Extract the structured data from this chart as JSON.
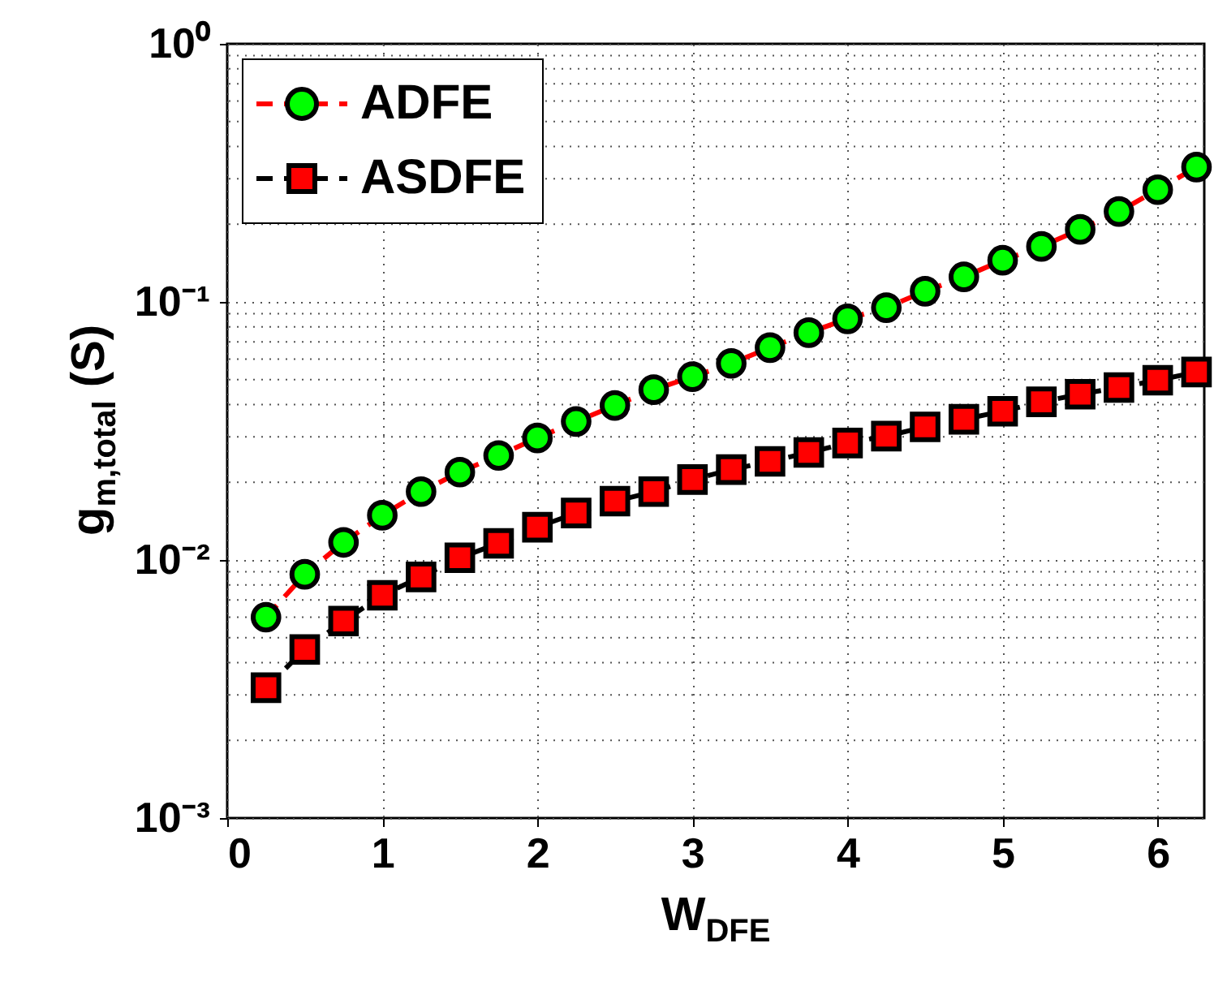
{
  "chart_data": {
    "type": "line",
    "xlabel": "W$_{DFE}$",
    "ylabel": "g$_{m,total}$ (S)",
    "x": [
      0.25,
      0.5,
      0.75,
      1,
      1.25,
      1.5,
      1.75,
      2,
      2.25,
      2.5,
      2.75,
      3,
      3.25,
      3.5,
      3.75,
      4,
      4.25,
      4.5,
      4.75,
      5,
      5.25,
      5.5,
      5.75,
      6,
      6.25
    ],
    "series": [
      {
        "name": "ADFE",
        "color": "#ff0000",
        "marker": "circle",
        "colors": [
          "#00ff00",
          "#00ff00",
          "#00ff00",
          "#00ff00",
          "#00ff00",
          "#00ff00",
          "#00ff00",
          "#00ff00",
          "#00ff00",
          "#00ff00",
          "#00ff00",
          "#00ff00",
          "#00ff00",
          "#00ff00",
          "#00ff00",
          "#00ff00",
          "#00ff00",
          "#00ff00",
          "#00ff00",
          "#00ff00",
          "#00ff00",
          "#00ff00",
          "#00ff00",
          "#00ff00",
          "#00ff00"
        ],
        "values": [
          0.006,
          0.0088,
          0.0117,
          0.0149,
          0.0184,
          0.0219,
          0.0254,
          0.0297,
          0.0344,
          0.0397,
          0.0457,
          0.0513,
          0.0578,
          0.0665,
          0.076,
          0.086,
          0.095,
          0.11,
          0.125,
          0.145,
          0.164,
          0.191,
          0.224,
          0.272,
          0.333
        ]
      },
      {
        "name": "ASDFE",
        "color": "#000000",
        "marker": "square",
        "colors": [
          "#ff0000",
          "#ff0000",
          "#ff0000",
          "#ff0000",
          "#ff0000",
          "#ff0000",
          "#ff0000",
          "#ff0000",
          "#ff0000",
          "#ff0000",
          "#ff0000",
          "#ff0000",
          "#ff0000",
          "#ff0000",
          "#ff0000",
          "#ff0000",
          "#ff0000",
          "#ff0000",
          "#ff0000",
          "#ff0000",
          "#ff0000",
          "#ff0000",
          "#ff0000",
          "#ff0000",
          "#ff0000"
        ],
        "values": [
          0.0032,
          0.0045,
          0.0058,
          0.0073,
          0.0086,
          0.0102,
          0.0116,
          0.0134,
          0.0152,
          0.0169,
          0.0184,
          0.0205,
          0.0224,
          0.0241,
          0.0261,
          0.0284,
          0.0302,
          0.0328,
          0.0351,
          0.0377,
          0.041,
          0.0439,
          0.0466,
          0.0497,
          0.0535
        ]
      }
    ],
    "xlim": [
      0,
      6.3
    ],
    "xticks": [
      0,
      1,
      2,
      3,
      4,
      5,
      6
    ],
    "ylim": [
      0.001,
      1
    ],
    "yticks": [
      {
        "value": 0.001,
        "label": "10⁻³"
      },
      {
        "value": 0.01,
        "label": "10⁻²"
      },
      {
        "value": 0.1,
        "label": "10⁻¹"
      },
      {
        "value": 1,
        "label": "10⁰"
      }
    ],
    "log": "y",
    "grid": true,
    "legend": "top left",
    "line_style": "dashed"
  }
}
